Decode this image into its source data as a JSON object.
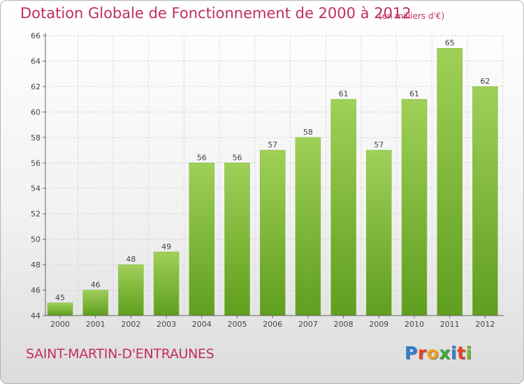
{
  "header": {
    "title": "Dotation Globale de Fonctionnement de 2000 à 2012",
    "unit_note": "(en milliers d'€)"
  },
  "footer": {
    "commune": "SAINT-MARTIN-D'ENTRAUNES",
    "logo_text": "Proxiti",
    "logo_letter_colors": [
      "#2f7fd0",
      "#e8412a",
      "#f0a020",
      "#3aa83a",
      "#2f7fd0",
      "#e8412a",
      "#7ab82a"
    ]
  },
  "colors": {
    "title": "#c0305a",
    "bar_light": "#9fd058",
    "bar_dark": "#5f9e1e",
    "grid": "#d8d8d8",
    "axis": "#666666"
  },
  "chart_data": {
    "type": "bar",
    "categories": [
      "2000",
      "2001",
      "2002",
      "2003",
      "2004",
      "2005",
      "2006",
      "2007",
      "2008",
      "2009",
      "2010",
      "2011",
      "2012"
    ],
    "values": [
      45,
      46,
      48,
      49,
      56,
      56,
      57,
      58,
      61,
      57,
      61,
      65,
      62
    ],
    "data_labels": [
      "45",
      "46",
      "48",
      "49",
      "56",
      "56",
      "57",
      "58",
      "61",
      "57",
      "61",
      "65",
      "62"
    ],
    "ylim": [
      44,
      66
    ],
    "yticks": [
      44,
      46,
      48,
      50,
      52,
      54,
      56,
      58,
      60,
      62,
      64,
      66
    ],
    "ytick_labels": [
      "44",
      "46",
      "48",
      "50",
      "52",
      "54",
      "56",
      "58",
      "60",
      "62",
      "64",
      "66"
    ],
    "title": "Dotation Globale de Fonctionnement de 2000 à 2012",
    "subtitle": "(en milliers d'€)",
    "xlabel": "",
    "ylabel": "",
    "grid": true,
    "legend": "none"
  }
}
